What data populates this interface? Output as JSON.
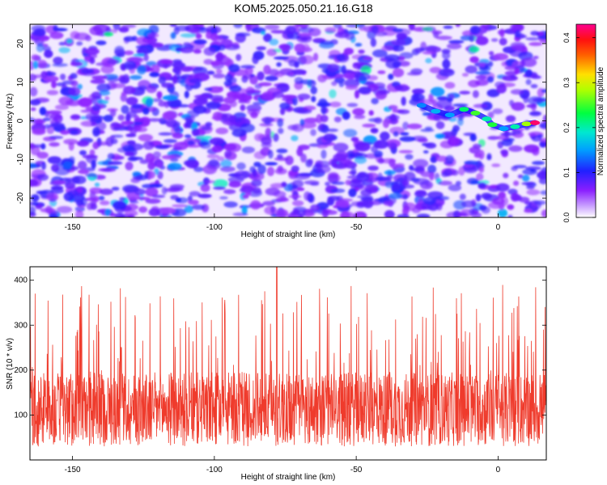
{
  "title": "KOM5.2025.050.21.16.G18",
  "chart_data": [
    {
      "type": "heatmap",
      "xlabel": "Height of straight line (km)",
      "ylabel": "Frequency (Hz)",
      "xlim": [
        -165,
        17
      ],
      "ylim": [
        -25,
        25
      ],
      "xticks": [
        -150,
        -100,
        -50,
        0
      ],
      "yticks": [
        -20,
        -10,
        0,
        10,
        20
      ],
      "colorbar": {
        "label": "Normalized spectral amplitude",
        "range": [
          0,
          0.43
        ],
        "ticks": [
          "0.0",
          "0.1",
          "0.2",
          "0.3",
          "0.4"
        ],
        "tick_values": [
          0,
          0.1,
          0.2,
          0.3,
          0.4
        ],
        "colors": [
          "#ffffff",
          "#9b30ff",
          "#1a1aff",
          "#00e0ff",
          "#00ff40",
          "#ffff00",
          "#ff4000",
          "#ff00a0"
        ]
      },
      "signal_track": [
        {
          "x": -27,
          "y": 4,
          "amplitude": 0.14
        },
        {
          "x": -22,
          "y": 2.5,
          "amplitude": 0.16
        },
        {
          "x": -17,
          "y": 1.5,
          "amplitude": 0.15
        },
        {
          "x": -12,
          "y": 3,
          "amplitude": 0.22
        },
        {
          "x": -8,
          "y": 2,
          "amplitude": 0.25
        },
        {
          "x": -4,
          "y": 0.5,
          "amplitude": 0.2
        },
        {
          "x": -2,
          "y": -1,
          "amplitude": 0.24
        },
        {
          "x": 2,
          "y": -2,
          "amplitude": 0.15
        },
        {
          "x": 6,
          "y": -1.5,
          "amplitude": 0.2
        },
        {
          "x": 10,
          "y": -0.8,
          "amplitude": 0.28
        },
        {
          "x": 13,
          "y": -0.5,
          "amplitude": 0.42
        }
      ]
    },
    {
      "type": "line",
      "xlabel": "Height of straight line (km)",
      "ylabel": "SNR (10 * v/v)",
      "xlim": [
        -165,
        17
      ],
      "ylim": [
        0,
        430
      ],
      "xticks": [
        -150,
        -100,
        -50,
        0
      ],
      "yticks": [
        100,
        200,
        300,
        400
      ],
      "line_color": "#ef3b2c",
      "series": [
        {
          "summary": "noise-like SNR trace with baseline roughly 60-250, frequent spikes to 250-400, peak about 430 near -78 km",
          "n_points": 1800,
          "baseline_min": 30,
          "baseline_max": 250,
          "peak": 430,
          "peak_x": -78
        }
      ]
    }
  ]
}
